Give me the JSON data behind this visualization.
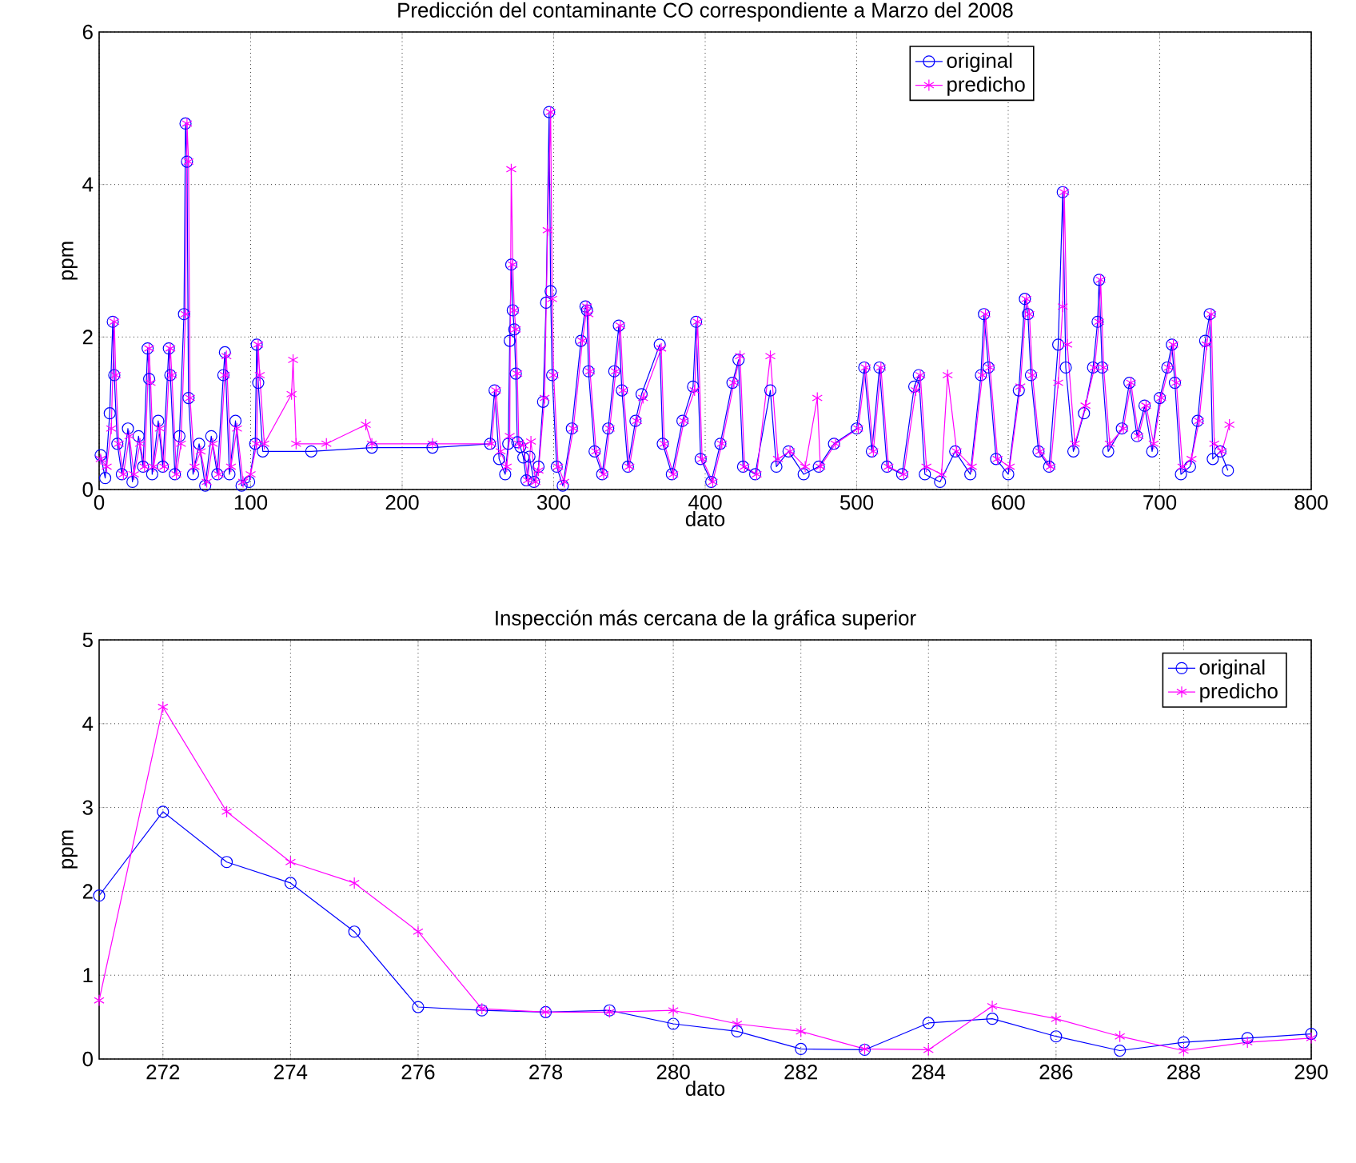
{
  "chart_data": [
    {
      "type": "line",
      "title": "Predicción del contaminante CO correspondiente a Marzo del 2008",
      "xlabel": "dato",
      "ylabel": "ppm",
      "xlim": [
        0,
        800
      ],
      "ylim": [
        0,
        6
      ],
      "xticks": [
        0,
        100,
        200,
        300,
        400,
        500,
        600,
        700,
        800
      ],
      "yticks": [
        0,
        2,
        4,
        6
      ],
      "grid": true,
      "legend": "top",
      "series": [
        {
          "name": "original",
          "color": "#0000ff",
          "marker": "circle",
          "x": [
            1,
            4,
            7,
            9,
            10,
            12,
            15,
            19,
            22,
            26,
            29,
            32,
            33,
            35,
            39,
            42,
            46,
            47,
            50,
            53,
            56,
            57,
            58,
            59,
            62,
            66,
            70,
            74,
            78,
            82,
            83,
            86,
            90,
            94,
            99,
            103,
            104,
            105,
            108,
            140,
            180,
            220,
            258,
            261,
            264,
            268,
            270,
            271,
            272,
            273,
            274,
            275,
            276,
            278,
            280,
            282,
            284,
            287,
            290,
            293,
            295,
            297,
            298,
            299,
            302,
            306,
            312,
            318,
            321,
            322,
            323,
            327,
            332,
            336,
            340,
            343,
            345,
            349,
            354,
            358,
            370,
            372,
            378,
            385,
            392,
            394,
            397,
            404,
            410,
            418,
            422,
            425,
            433,
            443,
            447,
            455,
            465,
            475,
            485,
            500,
            505,
            510,
            515,
            520,
            530,
            538,
            541,
            545,
            555,
            565,
            575,
            582,
            584,
            587,
            592,
            600,
            607,
            611,
            613,
            615,
            620,
            627,
            633,
            636,
            638,
            643,
            650,
            656,
            659,
            660,
            662,
            666,
            675,
            680,
            685,
            690,
            695,
            700,
            705,
            708,
            710,
            714,
            720,
            725,
            730,
            733,
            735,
            740,
            745
          ],
          "values": [
            0.45,
            0.15,
            1.0,
            2.2,
            1.5,
            0.6,
            0.2,
            0.8,
            0.1,
            0.7,
            0.3,
            1.85,
            1.45,
            0.2,
            0.9,
            0.3,
            1.85,
            1.5,
            0.2,
            0.7,
            2.3,
            4.8,
            4.3,
            1.2,
            0.2,
            0.6,
            0.05,
            0.7,
            0.2,
            1.5,
            1.8,
            0.2,
            0.9,
            0.05,
            0.1,
            0.6,
            1.9,
            1.4,
            0.5,
            0.5,
            0.55,
            0.55,
            0.6,
            1.3,
            0.4,
            0.2,
            0.6,
            1.95,
            2.95,
            2.35,
            2.1,
            1.52,
            0.62,
            0.56,
            0.42,
            0.12,
            0.43,
            0.1,
            0.3,
            1.15,
            2.45,
            4.95,
            2.6,
            1.5,
            0.3,
            0.05,
            0.8,
            1.95,
            2.4,
            2.35,
            1.55,
            0.5,
            0.2,
            0.8,
            1.55,
            2.15,
            1.3,
            0.3,
            0.9,
            1.25,
            1.9,
            0.6,
            0.2,
            0.9,
            1.35,
            2.2,
            0.4,
            0.1,
            0.6,
            1.4,
            1.7,
            0.3,
            0.2,
            1.3,
            0.3,
            0.5,
            0.2,
            0.3,
            0.6,
            0.8,
            1.6,
            0.5,
            1.6,
            0.3,
            0.2,
            1.35,
            1.5,
            0.2,
            0.1,
            0.5,
            0.2,
            1.5,
            2.3,
            1.6,
            0.4,
            0.2,
            1.3,
            2.5,
            2.3,
            1.5,
            0.5,
            0.3,
            1.9,
            3.9,
            1.6,
            0.5,
            1.0,
            1.6,
            2.2,
            2.75,
            1.6,
            0.5,
            0.8,
            1.4,
            0.7,
            1.1,
            0.5,
            1.2,
            1.6,
            1.9,
            1.4,
            0.2,
            0.3,
            0.9,
            1.95,
            2.3,
            0.4,
            0.5,
            0.25
          ]
        },
        {
          "name": "predicho",
          "color": "#ff00ff",
          "marker": "cross",
          "x": [
            1,
            5,
            8,
            10,
            11,
            13,
            16,
            20,
            23,
            27,
            30,
            33,
            34,
            36,
            40,
            43,
            47,
            48,
            51,
            54,
            57,
            58,
            59,
            60,
            63,
            67,
            71,
            75,
            79,
            83,
            84,
            87,
            91,
            95,
            100,
            104,
            105,
            106,
            109,
            127,
            128,
            130,
            150,
            176,
            180,
            220,
            259,
            262,
            265,
            269,
            271,
            272,
            273,
            274,
            275,
            276,
            277,
            280,
            283,
            285,
            288,
            290,
            294,
            296,
            298,
            299,
            300,
            303,
            307,
            313,
            319,
            322,
            323,
            324,
            328,
            333,
            337,
            341,
            344,
            346,
            350,
            355,
            359,
            371,
            373,
            379,
            386,
            393,
            395,
            398,
            405,
            411,
            419,
            423,
            426,
            434,
            443,
            448,
            456,
            466,
            474,
            476,
            486,
            501,
            506,
            511,
            516,
            521,
            531,
            539,
            542,
            546,
            556,
            560,
            566,
            576,
            583,
            585,
            588,
            593,
            601,
            608,
            612,
            614,
            616,
            621,
            628,
            633,
            636,
            637,
            639,
            644,
            651,
            657,
            660,
            661,
            663,
            667,
            676,
            681,
            686,
            691,
            696,
            701,
            706,
            709,
            711,
            715,
            721,
            726,
            731,
            734,
            736,
            741,
            746
          ],
          "values": [
            0.4,
            0.3,
            0.8,
            2.2,
            1.5,
            0.6,
            0.2,
            0.7,
            0.2,
            0.6,
            0.3,
            1.85,
            1.4,
            0.3,
            0.8,
            0.3,
            1.85,
            1.5,
            0.2,
            0.6,
            2.3,
            4.8,
            4.3,
            1.2,
            0.3,
            0.5,
            0.1,
            0.6,
            0.2,
            1.5,
            1.75,
            0.3,
            0.8,
            0.1,
            0.2,
            0.6,
            1.9,
            1.5,
            0.6,
            1.25,
            1.7,
            0.6,
            0.6,
            0.85,
            0.6,
            0.6,
            0.6,
            1.3,
            0.5,
            0.3,
            0.7,
            4.2,
            2.95,
            2.35,
            2.1,
            1.52,
            0.6,
            0.58,
            0.12,
            0.63,
            0.1,
            0.25,
            1.2,
            3.4,
            4.95,
            2.5,
            1.5,
            0.3,
            0.1,
            0.8,
            1.95,
            2.4,
            2.3,
            1.55,
            0.5,
            0.2,
            0.8,
            1.55,
            2.15,
            1.3,
            0.3,
            0.9,
            1.2,
            1.85,
            0.6,
            0.2,
            0.9,
            1.3,
            2.2,
            0.4,
            0.1,
            0.6,
            1.4,
            1.75,
            0.3,
            0.2,
            1.75,
            0.4,
            0.5,
            0.3,
            1.2,
            0.3,
            0.6,
            0.8,
            1.6,
            0.5,
            1.6,
            0.3,
            0.2,
            1.3,
            1.5,
            0.3,
            0.2,
            1.5,
            0.5,
            0.3,
            1.5,
            2.3,
            1.6,
            0.4,
            0.3,
            1.35,
            2.5,
            2.3,
            1.5,
            0.5,
            0.3,
            1.4,
            2.4,
            3.9,
            1.9,
            0.6,
            1.1,
            1.6,
            2.2,
            2.75,
            1.6,
            0.6,
            0.8,
            1.4,
            0.7,
            1.1,
            0.6,
            1.2,
            1.6,
            1.9,
            1.4,
            0.3,
            0.4,
            0.9,
            1.9,
            2.3,
            0.6,
            0.5,
            0.85
          ]
        }
      ]
    },
    {
      "type": "line",
      "title": "Inspección más cercana de la gráfica superior",
      "xlabel": "dato",
      "ylabel": "ppm",
      "xlim": [
        271,
        290
      ],
      "ylim": [
        0,
        5
      ],
      "xticks": [
        272,
        274,
        276,
        278,
        280,
        282,
        284,
        286,
        288,
        290
      ],
      "yticks": [
        0,
        1,
        2,
        3,
        4,
        5
      ],
      "grid": true,
      "legend": "top right",
      "series": [
        {
          "name": "original",
          "color": "#0000ff",
          "marker": "circle",
          "x": [
            271,
            272,
            273,
            274,
            275,
            276,
            277,
            278,
            279,
            280,
            281,
            282,
            283,
            284,
            285,
            286,
            287,
            288,
            289,
            290
          ],
          "values": [
            1.95,
            2.95,
            2.35,
            2.1,
            1.52,
            0.62,
            0.58,
            0.56,
            0.58,
            0.42,
            0.33,
            0.12,
            0.11,
            0.43,
            0.48,
            0.27,
            0.1,
            0.2,
            0.25,
            0.3
          ]
        },
        {
          "name": "predicho",
          "color": "#ff00ff",
          "marker": "cross",
          "x": [
            271,
            272,
            273,
            274,
            275,
            276,
            277,
            278,
            279,
            280,
            281,
            282,
            283,
            284,
            285,
            286,
            287,
            288,
            289,
            290
          ],
          "values": [
            0.7,
            4.2,
            2.95,
            2.35,
            2.1,
            1.52,
            0.6,
            0.56,
            0.56,
            0.58,
            0.42,
            0.33,
            0.12,
            0.11,
            0.63,
            0.48,
            0.27,
            0.1,
            0.2,
            0.25
          ]
        }
      ]
    }
  ]
}
